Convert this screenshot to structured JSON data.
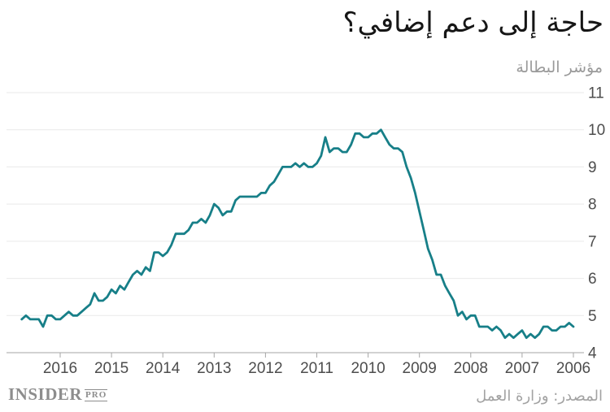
{
  "header": {
    "title": "حاجة إلى دعم إضافي؟",
    "subtitle": "مؤشر البطالة"
  },
  "footer": {
    "source": "المصدر: وزارة العمل",
    "logo_main": "INSIDER",
    "logo_suffix": "PRO"
  },
  "colors": {
    "line": "#177f88",
    "grid": "#e9e9e9",
    "axis": "#a6a6a6",
    "tick_label": "#4d4d4d",
    "title": "#161616",
    "muted": "#9a9a9a"
  },
  "chart_data": {
    "type": "line",
    "title": "حاجة إلى دعم إضافي؟",
    "ylabel": "مؤشر البطالة",
    "source": "المصدر: وزارة العمل",
    "grid": true,
    "legend": "none",
    "x_axis_reversed_rtl": true,
    "x_tick_labels": [
      "2016",
      "2015",
      "2014",
      "2013",
      "2012",
      "2011",
      "2010",
      "2009",
      "2008",
      "2007",
      "2006"
    ],
    "y_ticks": [
      11,
      10,
      9,
      8,
      7,
      6,
      5,
      4
    ],
    "ylim": [
      4,
      11
    ],
    "series": [
      {
        "name": "unemployment_index",
        "frequency": "monthly",
        "start_year": 2006,
        "start_month": 1,
        "values": [
          4.7,
          4.8,
          4.7,
          4.7,
          4.6,
          4.6,
          4.7,
          4.7,
          4.5,
          4.4,
          4.5,
          4.4,
          4.6,
          4.5,
          4.4,
          4.5,
          4.4,
          4.6,
          4.7,
          4.6,
          4.7,
          4.7,
          4.7,
          5.0,
          5.0,
          4.9,
          5.1,
          5.0,
          5.4,
          5.6,
          5.8,
          6.1,
          6.1,
          6.5,
          6.8,
          7.3,
          7.8,
          8.3,
          8.7,
          9.0,
          9.4,
          9.5,
          9.5,
          9.6,
          9.8,
          10.0,
          9.9,
          9.9,
          9.8,
          9.8,
          9.9,
          9.9,
          9.6,
          9.4,
          9.4,
          9.5,
          9.5,
          9.4,
          9.8,
          9.3,
          9.1,
          9.0,
          9.0,
          9.1,
          9.0,
          9.1,
          9.0,
          9.0,
          9.0,
          8.8,
          8.6,
          8.5,
          8.3,
          8.3,
          8.2,
          8.2,
          8.2,
          8.2,
          8.2,
          8.1,
          7.8,
          7.8,
          7.7,
          7.9,
          8.0,
          7.7,
          7.5,
          7.6,
          7.5,
          7.5,
          7.3,
          7.2,
          7.2,
          7.2,
          6.9,
          6.7,
          6.6,
          6.7,
          6.7,
          6.2,
          6.3,
          6.1,
          6.2,
          6.1,
          5.9,
          5.7,
          5.8,
          5.6,
          5.7,
          5.5,
          5.4,
          5.4,
          5.6,
          5.3,
          5.2,
          5.1,
          5.0,
          5.0,
          5.1,
          5.0,
          4.9,
          4.9,
          5.0,
          5.0,
          4.7,
          4.9,
          4.9,
          4.9,
          5.0,
          4.9
        ]
      }
    ]
  }
}
